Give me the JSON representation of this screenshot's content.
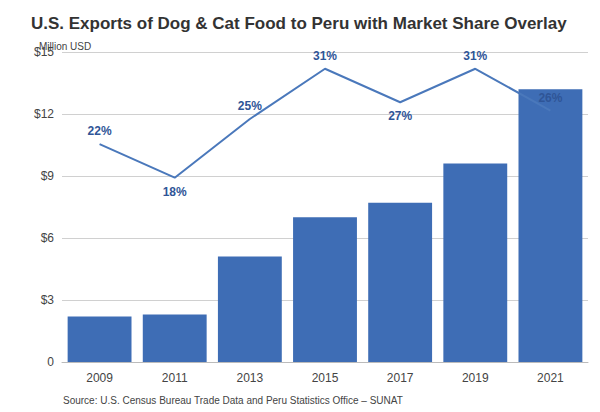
{
  "chart_data": {
    "type": "bar",
    "title": "U.S. Exports of Dog & Cat Food to Peru with Market Share Overlay",
    "ylabel": "Million USD",
    "source": "Source: U.S. Census Bureau Trade Data and Peru Statistics Office – SUNAT",
    "categories": [
      "2009",
      "2011",
      "2013",
      "2015",
      "2017",
      "2019",
      "2021"
    ],
    "series": [
      {
        "name": "U.S. Exports",
        "type": "bar",
        "color": "#3e6db5",
        "values": [
          2.2,
          2.3,
          5.1,
          7.0,
          7.7,
          9.6,
          13.2
        ]
      },
      {
        "name": "Market Share",
        "type": "line",
        "color": "#4a78bb",
        "axis": "y2",
        "data_labels": true,
        "values": [
          22,
          18,
          25,
          31,
          27,
          31,
          26
        ],
        "value_labels": [
          "22%",
          "18%",
          "25%",
          "31%",
          "27%",
          "31%",
          "26%"
        ]
      }
    ],
    "ylim": [
      0,
      15
    ],
    "yticks": [
      0,
      {
        "value": 3,
        "label": "$3"
      },
      {
        "value": 6,
        "label": "$6"
      },
      {
        "value": 9,
        "label": "$9"
      },
      {
        "value": 12,
        "label": "$12"
      },
      {
        "value": 15,
        "label": "$15"
      }
    ],
    "y2lim": [
      -4,
      33
    ],
    "grid": true
  }
}
